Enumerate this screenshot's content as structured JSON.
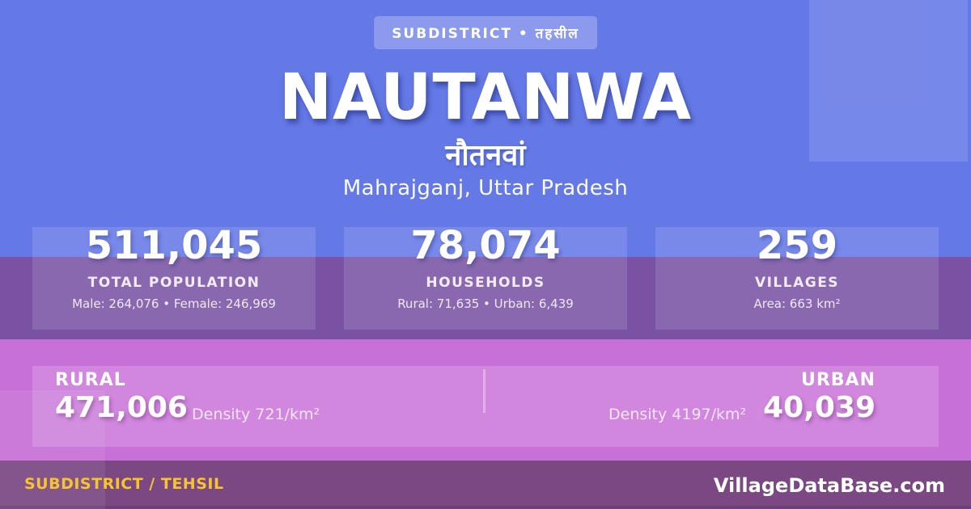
{
  "badge": {
    "label": "SUBDISTRICT • तहसील"
  },
  "header": {
    "title": "NAUTANWA",
    "native_name": "नौतनवां",
    "region": "Mahrajganj, Uttar Pradesh"
  },
  "stats": [
    {
      "value": "511,045",
      "label": "TOTAL POPULATION",
      "detail": "Male: 264,076 • Female: 246,969"
    },
    {
      "value": "78,074",
      "label": "HOUSEHOLDS",
      "detail": "Rural: 71,635 • Urban: 6,439"
    },
    {
      "value": "259",
      "label": "VILLAGES",
      "detail": "Area: 663 km²"
    }
  ],
  "rural_urban": {
    "rural": {
      "label": "RURAL",
      "value": "471,006",
      "density": "Density 721/km²"
    },
    "urban": {
      "label": "URBAN",
      "value": "40,039",
      "density": "Density 4197/km²"
    }
  },
  "footer": {
    "type_label": "SUBDISTRICT / TEHSIL",
    "site": "VillageDataBase.com"
  },
  "colors": {
    "hero-bg": "#6478e6",
    "band-bg": "#7952a4",
    "pink-bg": "#c770d7",
    "footer-bg": "#7b4884",
    "accent-yellow": "#f6c52e"
  }
}
